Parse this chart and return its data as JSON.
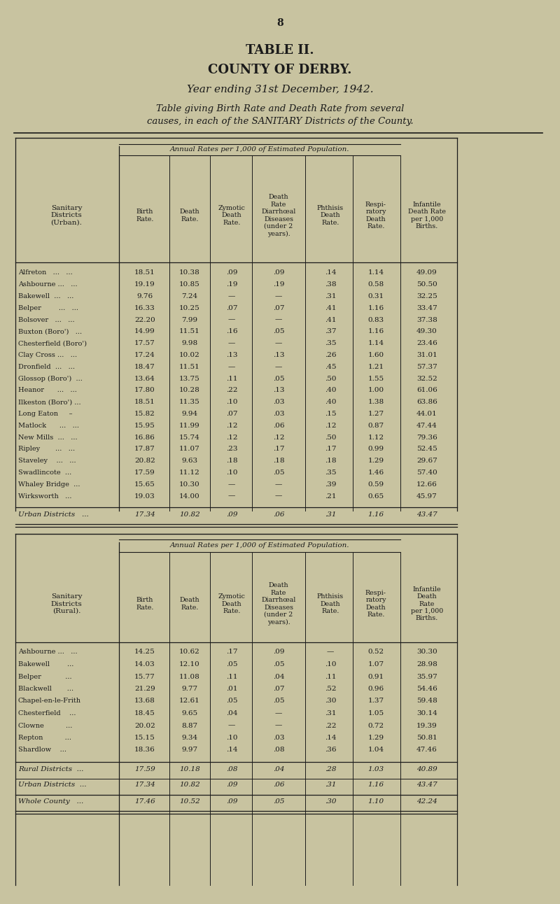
{
  "page_num": "8",
  "title1": "TABLE II.",
  "title2": "COUNTY OF DERBY.",
  "title3": "Year ending 31st December, 1942.",
  "title4": "Table giving Birth Rate and Death Rate from several",
  "title5": "causes, in each of the SANITARY Districts of the County.",
  "bg_color": "#c8c3a0",
  "text_color": "#1a1a1a",
  "annual_rates_label": "Annual Rates per 1,000 of Estimated Population.",
  "urban_rows": [
    [
      "Alfreton   ...   ...",
      "18.51",
      "10.38",
      ".09",
      ".09",
      ".14",
      "1.14",
      "49.09"
    ],
    [
      "Ashbourne ...   ...",
      "19.19",
      "10.85",
      ".19",
      ".19",
      ".38",
      "0.58",
      "50.50"
    ],
    [
      "Bakewell  ...   ...",
      "9.76",
      "7.24",
      "—",
      "—",
      ".31",
      "0.31",
      "32.25"
    ],
    [
      "Belper        ...   ...",
      "16.33",
      "10.25",
      ".07",
      ".07",
      ".41",
      "1.16",
      "33.47"
    ],
    [
      "Bolsover   ...   ...",
      "22.20",
      "7.99",
      "—",
      "—",
      ".41",
      "0.83",
      "37.38"
    ],
    [
      "Buxton (Boro')   ...",
      "14.99",
      "11.51",
      ".16",
      ".05",
      ".37",
      "1.16",
      "49.30"
    ],
    [
      "Chesterfield (Boro')",
      "17.57",
      "9.98",
      "—",
      "—",
      ".35",
      "1.14",
      "23.46"
    ],
    [
      "Clay Cross ...   ...",
      "17.24",
      "10.02",
      ".13",
      ".13",
      ".26",
      "1.60",
      "31.01"
    ],
    [
      "Dronfield  ...   ...",
      "18.47",
      "11.51",
      "—",
      "—",
      ".45",
      "1.21",
      "57.37"
    ],
    [
      "Glossop (Boro')  ...",
      "13.64",
      "13.75",
      ".11",
      ".05",
      ".50",
      "1.55",
      "32.52"
    ],
    [
      "Heanor      ...   ...",
      "17.80",
      "10.28",
      ".22",
      ".13",
      ".40",
      "1.00",
      "61.06"
    ],
    [
      "Ilkeston (Boro') ...",
      "18.51",
      "11.35",
      ".10",
      ".03",
      ".40",
      "1.38",
      "63.86"
    ],
    [
      "Long Eaton     –",
      "15.82",
      "9.94",
      ".07",
      ".03",
      ".15",
      "1.27",
      "44.01"
    ],
    [
      "Matlock      ...   ...",
      "15.95",
      "11.99",
      ".12",
      ".06",
      ".12",
      "0.87",
      "47.44"
    ],
    [
      "New Mills  ...   ...",
      "16.86",
      "15.74",
      ".12",
      ".12",
      ".50",
      "1.12",
      "79.36"
    ],
    [
      "Ripley       ...   ...",
      "17.87",
      "11.07",
      ".23",
      ".17",
      ".17",
      "0.99",
      "52.45"
    ],
    [
      "Staveley    ...   ...",
      "20.82",
      "9.63",
      ".18",
      ".18",
      ".18",
      "1.29",
      "29.67"
    ],
    [
      "Swadlincote  ...",
      "17.59",
      "11.12",
      ".10",
      ".05",
      ".35",
      "1.46",
      "57.40"
    ],
    [
      "Whaley Bridge  ...",
      "15.65",
      "10.30",
      "—",
      "—",
      ".39",
      "0.59",
      "12.66"
    ],
    [
      "Wirksworth   ...",
      "19.03",
      "14.00",
      "—",
      "—",
      ".21",
      "0.65",
      "45.97"
    ]
  ],
  "urban_total": [
    "Urban Districts   ...",
    "17.34",
    "10.82",
    ".09",
    ".06",
    ".31",
    "1.16",
    "43.47"
  ],
  "rural_rows": [
    [
      "Ashbourne ...   ...",
      "14.25",
      "10.62",
      ".17",
      ".09",
      "—",
      "0.52",
      "30.30"
    ],
    [
      "Bakewell        ...",
      "14.03",
      "12.10",
      ".05",
      ".05",
      ".10",
      "1.07",
      "28.98"
    ],
    [
      "Belper           ...",
      "15.77",
      "11.08",
      ".11",
      ".04",
      ".11",
      "0.91",
      "35.97"
    ],
    [
      "Blackwell       ...",
      "21.29",
      "9.77",
      ".01",
      ".07",
      ".52",
      "0.96",
      "54.46"
    ],
    [
      "Chapel-en-le-Frith",
      "13.68",
      "12.61",
      ".05",
      ".05",
      ".30",
      "1.37",
      "59.48"
    ],
    [
      "Chesterfield    ...",
      "18.45",
      "9.65",
      ".04",
      "—",
      ".31",
      "1.05",
      "30.14"
    ],
    [
      "Clowne          ...",
      "20.02",
      "8.87",
      "—",
      "—",
      ".22",
      "0.72",
      "19.39"
    ],
    [
      "Repton          ...",
      "15.15",
      "9.34",
      ".10",
      ".03",
      ".14",
      "1.29",
      "50.81"
    ],
    [
      "Shardlow    ...",
      "18.36",
      "9.97",
      ".14",
      ".08",
      ".36",
      "1.04",
      "47.46"
    ]
  ],
  "rural_total": [
    "Rural Districts  ...",
    "17.59",
    "10.18",
    ".08",
    ".04",
    ".28",
    "1.03",
    "40.89"
  ],
  "urban_total2": [
    "Urban Districts  ...",
    "17.34",
    "10.82",
    ".09",
    ".06",
    ".31",
    "1.16",
    "43.47"
  ],
  "whole_county": [
    "Whole County   ...",
    "17.46",
    "10.52",
    ".09",
    ".05",
    ".30",
    "1.10",
    "42.24"
  ]
}
